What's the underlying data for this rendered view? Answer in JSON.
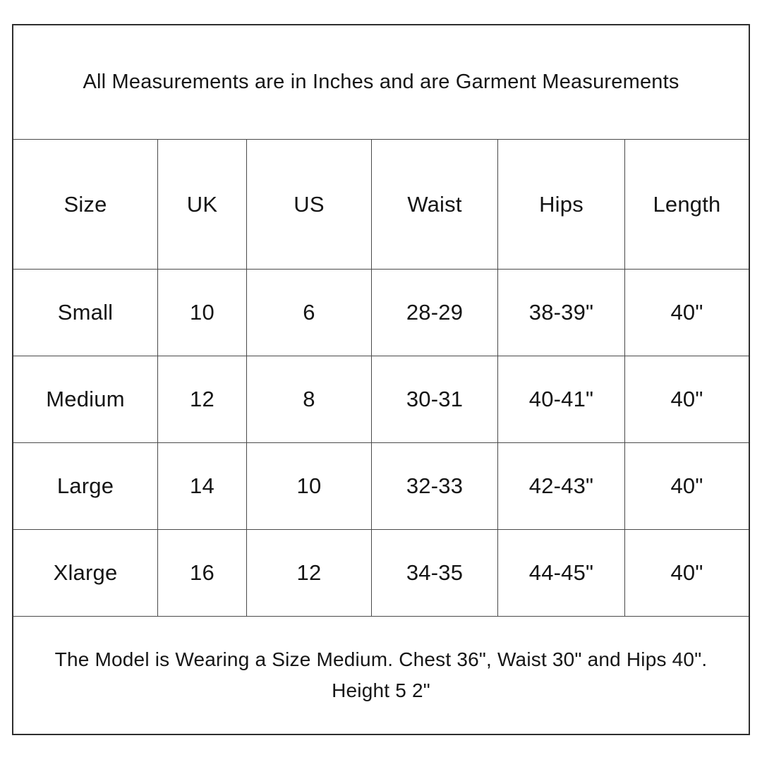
{
  "chart_data": {
    "type": "table",
    "title": "All Measurements are in Inches and are Garment Measurements",
    "headers": [
      "Size",
      "UK",
      "US",
      "Waist",
      "Hips",
      "Length"
    ],
    "rows": [
      [
        "Small",
        "10",
        "6",
        "28-29",
        "38-39\"",
        "40\""
      ],
      [
        "Medium",
        "12",
        "8",
        "30-31",
        "40-41\"",
        "40\""
      ],
      [
        "Large",
        "14",
        "10",
        "32-33",
        "42-43\"",
        "40\""
      ],
      [
        "Xlarge",
        "16",
        "12",
        "34-35",
        "44-45\"",
        "40\""
      ]
    ],
    "footnote": "The Model is Wearing a Size Medium. Chest 36\", Waist 30\" and Hips 40\". Height 5 2\"",
    "layout": "bordered table, all cells centered, title band above, footnote band below"
  },
  "footer": {
    "lines": [
      "The Model is Wearing a Size Medium. Chest 36\", Waist 30\" and Hips 40\".",
      "Height 5 2\""
    ]
  },
  "colors": {
    "background": "#ffffff",
    "border_outer": "#2e2e2e",
    "border_inner": "#4a4a4a",
    "text": "#161616"
  }
}
